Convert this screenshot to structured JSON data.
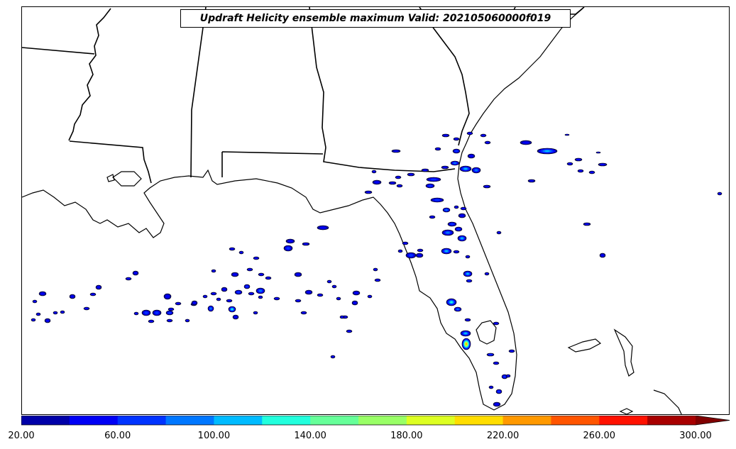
{
  "title": "Updraft Helicity ensemble maximum Valid: 202105060000f019",
  "colorbar": {
    "min": 20,
    "max": 300,
    "step": 20,
    "extend": "max",
    "colors": [
      "#0000a8",
      "#0000f5",
      "#0033ff",
      "#0077ff",
      "#00bbff",
      "#22ffdd",
      "#66ff99",
      "#99ff66",
      "#ddff22",
      "#ffdd00",
      "#ff9900",
      "#ff5500",
      "#ff1100",
      "#a80000",
      "#800000"
    ],
    "tick_labels": [
      "20.00",
      "60.00",
      "100.00",
      "140.00",
      "180.00",
      "220.00",
      "260.00",
      "300.00"
    ]
  },
  "map": {
    "region": "Southeastern United States and Florida",
    "line_color": "#000000"
  }
}
